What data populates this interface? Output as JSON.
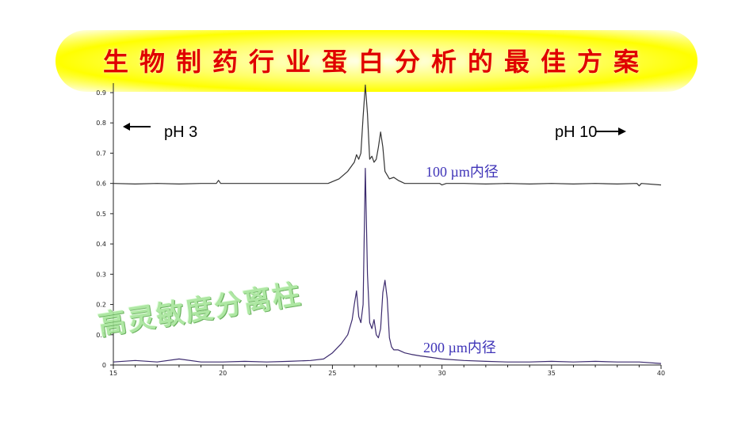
{
  "title": "生物制药行业蛋白分析的最佳方案",
  "overlay_label": "高灵敏度分离柱",
  "chart_data": {
    "type": "line",
    "xlim": [
      15,
      40
    ],
    "ylim": [
      0,
      0.95
    ],
    "x_ticks": [
      15,
      20,
      25,
      30,
      35,
      40
    ],
    "y_ticks": [
      0,
      0.1,
      0.2,
      0.3,
      0.4,
      0.5,
      0.6,
      0.7,
      0.8,
      0.9
    ],
    "y_tick_labels": [
      "0",
      "0.1",
      "0.2",
      "0.3",
      "0.4",
      "0.5",
      "0.6",
      "0.7",
      "0.8",
      "0.9"
    ],
    "grid": false,
    "annotations": {
      "left": "pH 3",
      "right": "pH 10"
    },
    "series": [
      {
        "name": "100 µm内径",
        "color": "#333333",
        "baseline": 0.6,
        "x": [
          15,
          16,
          17,
          18,
          19,
          19.7,
          19.8,
          19.9,
          21,
          22,
          23,
          24,
          24.8,
          25.3,
          25.7,
          26.0,
          26.1,
          26.2,
          26.3,
          26.4,
          26.5,
          26.6,
          26.7,
          26.8,
          26.9,
          27.0,
          27.1,
          27.2,
          27.3,
          27.4,
          27.6,
          27.8,
          28.0,
          28.3,
          29.0,
          29.9,
          30.0,
          30.2,
          31,
          32,
          33,
          34,
          35,
          36,
          37,
          38,
          38.9,
          39.0,
          39.1,
          40
        ],
        "values": [
          0.6,
          0.598,
          0.6,
          0.598,
          0.6,
          0.6,
          0.61,
          0.6,
          0.6,
          0.6,
          0.6,
          0.6,
          0.6,
          0.615,
          0.64,
          0.67,
          0.695,
          0.68,
          0.7,
          0.82,
          0.925,
          0.83,
          0.68,
          0.69,
          0.67,
          0.68,
          0.72,
          0.77,
          0.72,
          0.64,
          0.615,
          0.62,
          0.61,
          0.6,
          0.6,
          0.6,
          0.595,
          0.6,
          0.6,
          0.598,
          0.6,
          0.598,
          0.6,
          0.598,
          0.6,
          0.598,
          0.6,
          0.592,
          0.6,
          0.595
        ],
        "label": "100 µm内径"
      },
      {
        "name": "200 µm内径",
        "color": "#3c2b6e",
        "baseline": 0.01,
        "x": [
          15,
          16,
          17,
          18,
          19,
          20,
          21,
          22,
          23,
          24,
          24.6,
          25.0,
          25.4,
          25.7,
          25.9,
          26.0,
          26.1,
          26.2,
          26.3,
          26.4,
          26.5,
          26.6,
          26.7,
          26.8,
          26.9,
          27.0,
          27.1,
          27.2,
          27.3,
          27.4,
          27.5,
          27.6,
          27.7,
          27.8,
          28.0,
          28.3,
          28.6,
          29.0,
          29.5,
          30,
          31,
          32,
          33,
          34,
          35,
          36,
          37,
          38,
          39,
          40
        ],
        "values": [
          0.01,
          0.015,
          0.01,
          0.02,
          0.01,
          0.01,
          0.012,
          0.01,
          0.012,
          0.015,
          0.02,
          0.04,
          0.07,
          0.1,
          0.15,
          0.2,
          0.245,
          0.16,
          0.14,
          0.2,
          0.65,
          0.3,
          0.14,
          0.12,
          0.15,
          0.1,
          0.09,
          0.12,
          0.24,
          0.28,
          0.22,
          0.09,
          0.06,
          0.05,
          0.05,
          0.04,
          0.035,
          0.03,
          0.025,
          0.02,
          0.015,
          0.012,
          0.01,
          0.01,
          0.012,
          0.01,
          0.012,
          0.01,
          0.01,
          0.005
        ],
        "label": "200 µm内径"
      }
    ]
  }
}
